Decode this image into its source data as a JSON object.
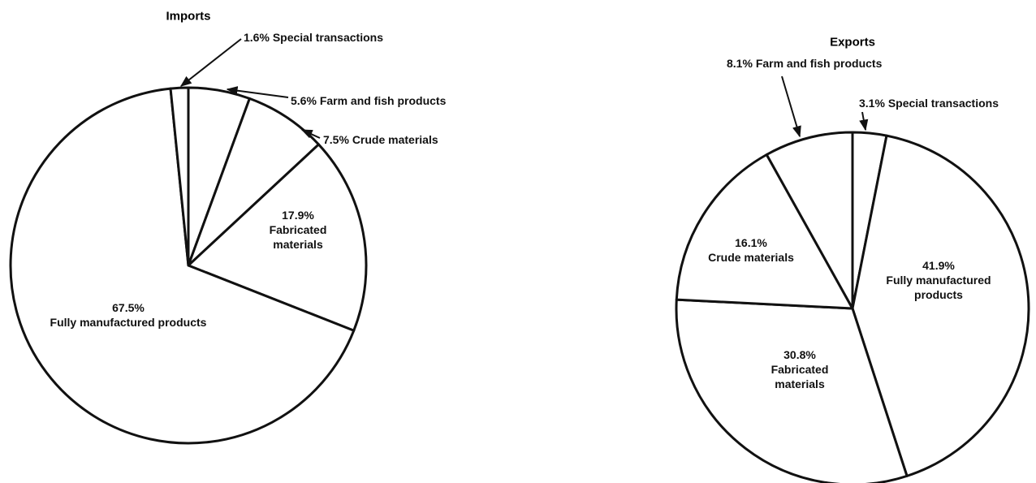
{
  "chart_data": [
    {
      "type": "pie",
      "title": "Imports",
      "categories": [
        "Farm and fish products",
        "Crude materials",
        "Fabricated materials",
        "Fully manufactured products",
        "Special transactions"
      ],
      "values": [
        5.6,
        7.5,
        17.9,
        67.5,
        1.6
      ],
      "value_labels": [
        "5.6%",
        "7.5%",
        "17.9%",
        "67.5%",
        "1.6%"
      ],
      "color": "#ffffff"
    },
    {
      "type": "pie",
      "title": "Exports",
      "categories": [
        "Special transactions",
        "Fully manufactured products",
        "Fabricated materials",
        "Crude materials",
        "Farm and fish products"
      ],
      "values": [
        3.1,
        41.9,
        30.8,
        16.1,
        8.1
      ],
      "value_labels": [
        "3.1%",
        "41.9%",
        "30.8%",
        "16.1%",
        "8.1%"
      ],
      "color": "#ffffff"
    }
  ]
}
